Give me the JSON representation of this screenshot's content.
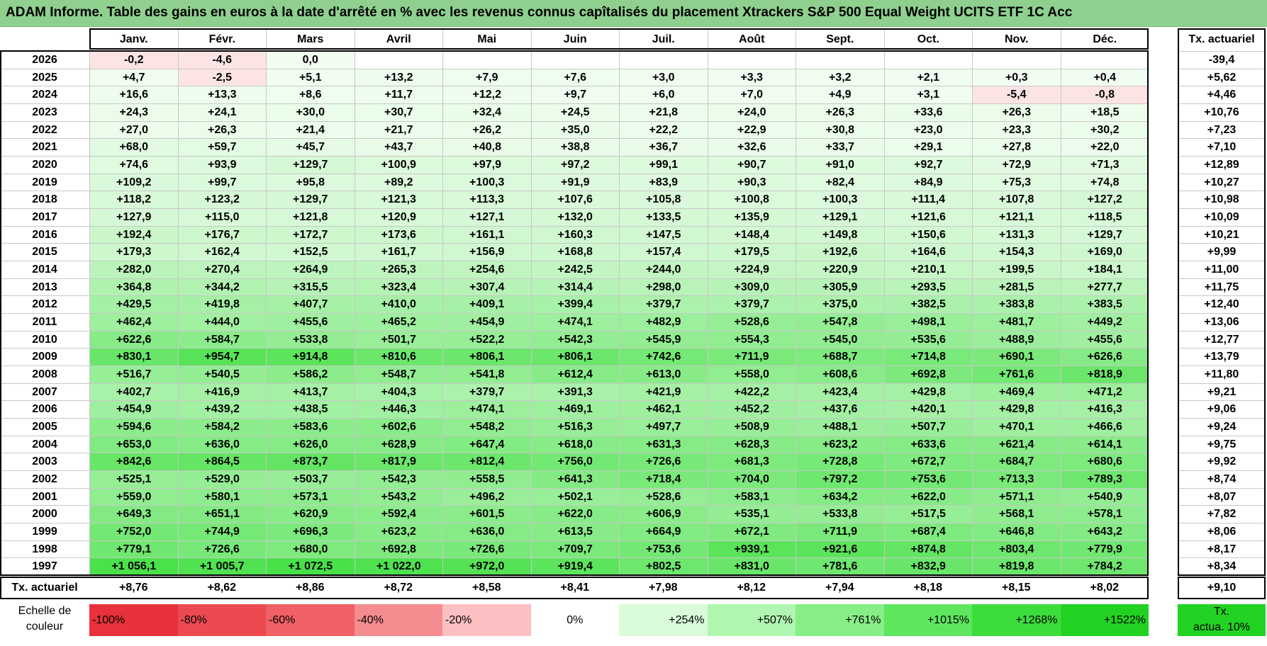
{
  "title": "ADAM Informe. Table des gains en euros à la date d'arrêté en % avec les revenus connus capîtalisés du placement Xtrackers S&P 500 Equal Weight UCITS ETF 1C Acc",
  "months": [
    "Janv.",
    "Févr.",
    "Mars",
    "Avril",
    "Mai",
    "Juin",
    "Juil.",
    "Août",
    "Sept.",
    "Oct.",
    "Nov.",
    "Déc."
  ],
  "rate_header": "Tx. actuariel",
  "rows": [
    {
      "year": "2026",
      "values": [
        "-0,2",
        "-4,6",
        "0,0",
        "",
        "",
        "",
        "",
        "",
        "",
        "",
        "",
        ""
      ],
      "rate": "-39,4"
    },
    {
      "year": "2025",
      "values": [
        "+4,7",
        "-2,5",
        "+5,1",
        "+13,2",
        "+7,9",
        "+7,6",
        "+3,0",
        "+3,3",
        "+3,2",
        "+2,1",
        "+0,3",
        "+0,4"
      ],
      "rate": "+5,62"
    },
    {
      "year": "2024",
      "values": [
        "+16,6",
        "+13,3",
        "+8,6",
        "+11,7",
        "+12,2",
        "+9,7",
        "+6,0",
        "+7,0",
        "+4,9",
        "+3,1",
        "-5,4",
        "-0,8"
      ],
      "rate": "+4,46"
    },
    {
      "year": "2023",
      "values": [
        "+24,3",
        "+24,1",
        "+30,0",
        "+30,7",
        "+32,4",
        "+24,5",
        "+21,8",
        "+24,0",
        "+26,3",
        "+33,6",
        "+26,3",
        "+18,5"
      ],
      "rate": "+10,76"
    },
    {
      "year": "2022",
      "values": [
        "+27,0",
        "+26,3",
        "+21,4",
        "+21,7",
        "+26,2",
        "+35,0",
        "+22,2",
        "+22,9",
        "+30,8",
        "+23,0",
        "+23,3",
        "+30,2"
      ],
      "rate": "+7,23"
    },
    {
      "year": "2021",
      "values": [
        "+68,0",
        "+59,7",
        "+45,7",
        "+43,7",
        "+40,8",
        "+38,8",
        "+36,7",
        "+32,6",
        "+33,7",
        "+29,1",
        "+27,8",
        "+22,0"
      ],
      "rate": "+7,10"
    },
    {
      "year": "2020",
      "values": [
        "+74,6",
        "+93,9",
        "+129,7",
        "+100,9",
        "+97,9",
        "+97,2",
        "+99,1",
        "+90,7",
        "+91,0",
        "+92,7",
        "+72,9",
        "+71,3"
      ],
      "rate": "+12,89"
    },
    {
      "year": "2019",
      "values": [
        "+109,2",
        "+99,7",
        "+95,8",
        "+89,2",
        "+100,3",
        "+91,9",
        "+83,9",
        "+90,3",
        "+82,4",
        "+84,9",
        "+75,3",
        "+74,8"
      ],
      "rate": "+10,27"
    },
    {
      "year": "2018",
      "values": [
        "+118,2",
        "+123,2",
        "+129,7",
        "+121,3",
        "+113,3",
        "+107,6",
        "+105,8",
        "+100,8",
        "+100,3",
        "+111,4",
        "+107,8",
        "+127,2"
      ],
      "rate": "+10,98"
    },
    {
      "year": "2017",
      "values": [
        "+127,9",
        "+115,0",
        "+121,8",
        "+120,9",
        "+127,1",
        "+132,0",
        "+133,5",
        "+135,9",
        "+129,1",
        "+121,6",
        "+121,1",
        "+118,5"
      ],
      "rate": "+10,09"
    },
    {
      "year": "2016",
      "values": [
        "+192,4",
        "+176,7",
        "+172,7",
        "+173,6",
        "+161,1",
        "+160,3",
        "+147,5",
        "+148,4",
        "+149,8",
        "+150,6",
        "+131,3",
        "+129,7"
      ],
      "rate": "+10,21"
    },
    {
      "year": "2015",
      "values": [
        "+179,3",
        "+162,4",
        "+152,5",
        "+161,7",
        "+156,9",
        "+168,8",
        "+157,4",
        "+179,5",
        "+192,6",
        "+164,6",
        "+154,3",
        "+169,0"
      ],
      "rate": "+9,99"
    },
    {
      "year": "2014",
      "values": [
        "+282,0",
        "+270,4",
        "+264,9",
        "+265,3",
        "+254,6",
        "+242,5",
        "+244,0",
        "+224,9",
        "+220,9",
        "+210,1",
        "+199,5",
        "+184,1"
      ],
      "rate": "+11,00"
    },
    {
      "year": "2013",
      "values": [
        "+364,8",
        "+344,2",
        "+315,5",
        "+323,4",
        "+307,4",
        "+314,4",
        "+298,0",
        "+309,0",
        "+305,9",
        "+293,5",
        "+281,5",
        "+277,7"
      ],
      "rate": "+11,75"
    },
    {
      "year": "2012",
      "values": [
        "+429,5",
        "+419,8",
        "+407,7",
        "+410,0",
        "+409,1",
        "+399,4",
        "+379,7",
        "+379,7",
        "+375,0",
        "+382,5",
        "+383,8",
        "+383,5"
      ],
      "rate": "+12,40"
    },
    {
      "year": "2011",
      "values": [
        "+462,4",
        "+444,0",
        "+455,6",
        "+465,2",
        "+454,9",
        "+474,1",
        "+482,9",
        "+528,6",
        "+547,8",
        "+498,1",
        "+481,7",
        "+449,2"
      ],
      "rate": "+13,06"
    },
    {
      "year": "2010",
      "values": [
        "+622,6",
        "+584,7",
        "+533,8",
        "+501,7",
        "+522,2",
        "+542,3",
        "+545,9",
        "+554,3",
        "+545,0",
        "+535,6",
        "+488,9",
        "+455,6"
      ],
      "rate": "+12,77"
    },
    {
      "year": "2009",
      "values": [
        "+830,1",
        "+954,7",
        "+914,8",
        "+810,6",
        "+806,1",
        "+806,1",
        "+742,6",
        "+711,9",
        "+688,7",
        "+714,8",
        "+690,1",
        "+626,6"
      ],
      "rate": "+13,79"
    },
    {
      "year": "2008",
      "values": [
        "+516,7",
        "+540,5",
        "+586,2",
        "+548,7",
        "+541,8",
        "+612,4",
        "+613,0",
        "+558,0",
        "+608,6",
        "+692,8",
        "+761,6",
        "+818,9"
      ],
      "rate": "+11,80"
    },
    {
      "year": "2007",
      "values": [
        "+402,7",
        "+416,9",
        "+413,7",
        "+404,3",
        "+379,7",
        "+391,3",
        "+421,9",
        "+422,2",
        "+423,4",
        "+429,8",
        "+469,4",
        "+471,2"
      ],
      "rate": "+9,21"
    },
    {
      "year": "2006",
      "values": [
        "+454,9",
        "+439,2",
        "+438,5",
        "+446,3",
        "+474,1",
        "+469,1",
        "+462,1",
        "+452,2",
        "+437,6",
        "+420,1",
        "+429,8",
        "+416,3"
      ],
      "rate": "+9,06"
    },
    {
      "year": "2005",
      "values": [
        "+594,6",
        "+584,2",
        "+583,6",
        "+602,6",
        "+548,2",
        "+516,3",
        "+497,7",
        "+508,9",
        "+488,1",
        "+507,7",
        "+470,1",
        "+466,6"
      ],
      "rate": "+9,24"
    },
    {
      "year": "2004",
      "values": [
        "+653,0",
        "+636,0",
        "+626,0",
        "+628,9",
        "+647,4",
        "+618,0",
        "+631,3",
        "+628,3",
        "+623,2",
        "+633,6",
        "+621,4",
        "+614,1"
      ],
      "rate": "+9,75"
    },
    {
      "year": "2003",
      "values": [
        "+842,6",
        "+864,5",
        "+873,7",
        "+817,9",
        "+812,4",
        "+756,0",
        "+726,6",
        "+681,3",
        "+728,8",
        "+672,7",
        "+684,7",
        "+680,6"
      ],
      "rate": "+9,92"
    },
    {
      "year": "2002",
      "values": [
        "+525,1",
        "+529,0",
        "+503,7",
        "+542,3",
        "+558,5",
        "+641,3",
        "+718,4",
        "+704,0",
        "+797,2",
        "+753,6",
        "+713,3",
        "+789,3"
      ],
      "rate": "+8,74"
    },
    {
      "year": "2001",
      "values": [
        "+559,0",
        "+580,1",
        "+573,1",
        "+543,2",
        "+496,2",
        "+502,1",
        "+528,6",
        "+583,1",
        "+634,2",
        "+622,0",
        "+571,1",
        "+540,9"
      ],
      "rate": "+8,07"
    },
    {
      "year": "2000",
      "values": [
        "+649,3",
        "+651,1",
        "+620,9",
        "+592,4",
        "+601,5",
        "+622,0",
        "+606,9",
        "+535,1",
        "+533,8",
        "+517,5",
        "+568,1",
        "+578,1"
      ],
      "rate": "+7,82"
    },
    {
      "year": "1999",
      "values": [
        "+752,0",
        "+744,9",
        "+696,3",
        "+623,2",
        "+636,0",
        "+613,5",
        "+664,9",
        "+672,1",
        "+711,9",
        "+687,4",
        "+646,8",
        "+643,2"
      ],
      "rate": "+8,06"
    },
    {
      "year": "1998",
      "values": [
        "+779,1",
        "+726,6",
        "+680,0",
        "+692,8",
        "+726,6",
        "+709,7",
        "+753,6",
        "+939,1",
        "+921,6",
        "+874,8",
        "+803,4",
        "+779,9"
      ],
      "rate": "+8,17"
    },
    {
      "year": "1997",
      "values": [
        "+1 056,1",
        "+1 005,7",
        "+1 072,5",
        "+1 022,0",
        "+972,0",
        "+919,4",
        "+802,5",
        "+831,0",
        "+781,6",
        "+832,9",
        "+819,8",
        "+784,2"
      ],
      "rate": "+8,34"
    }
  ],
  "footer": {
    "label": "Tx. actuariel",
    "values": [
      "+8,76",
      "+8,62",
      "+8,86",
      "+8,72",
      "+8,58",
      "+8,41",
      "+7,98",
      "+8,12",
      "+7,94",
      "+8,18",
      "+8,15",
      "+8,02"
    ],
    "rate": "+9,10"
  },
  "legend": {
    "label_line1": "Echelle de",
    "label_line2": "couleur",
    "cells": [
      {
        "text": "-100%",
        "color": "#e8313a",
        "align": "left"
      },
      {
        "text": "-80%",
        "color": "#ec4a50",
        "align": "left"
      },
      {
        "text": "-60%",
        "color": "#f06066",
        "align": "left"
      },
      {
        "text": "-40%",
        "color": "#f58c8f",
        "align": "left"
      },
      {
        "text": "-20%",
        "color": "#fac0c2",
        "align": "left"
      },
      {
        "text": "0%",
        "color": "#ffffff",
        "align": "center"
      },
      {
        "text": "+254%",
        "color": "#d9fbd9",
        "align": "right"
      },
      {
        "text": "+507%",
        "color": "#b0f5b0",
        "align": "right"
      },
      {
        "text": "+761%",
        "color": "#88ee88",
        "align": "right"
      },
      {
        "text": "+1015%",
        "color": "#5fe65f",
        "align": "right"
      },
      {
        "text": "+1268%",
        "color": "#3cdc3c",
        "align": "right"
      },
      {
        "text": "+1522%",
        "color": "#22d222",
        "align": "right"
      }
    ],
    "rate_line1": "Tx.",
    "rate_line2": "actua. 10%",
    "rate_color": "#22d222"
  },
  "colors": {
    "title_bg": "#8fd08f",
    "grid": "#c8c8c8",
    "negative": "#fde4e4",
    "green_max": "#44e044"
  }
}
